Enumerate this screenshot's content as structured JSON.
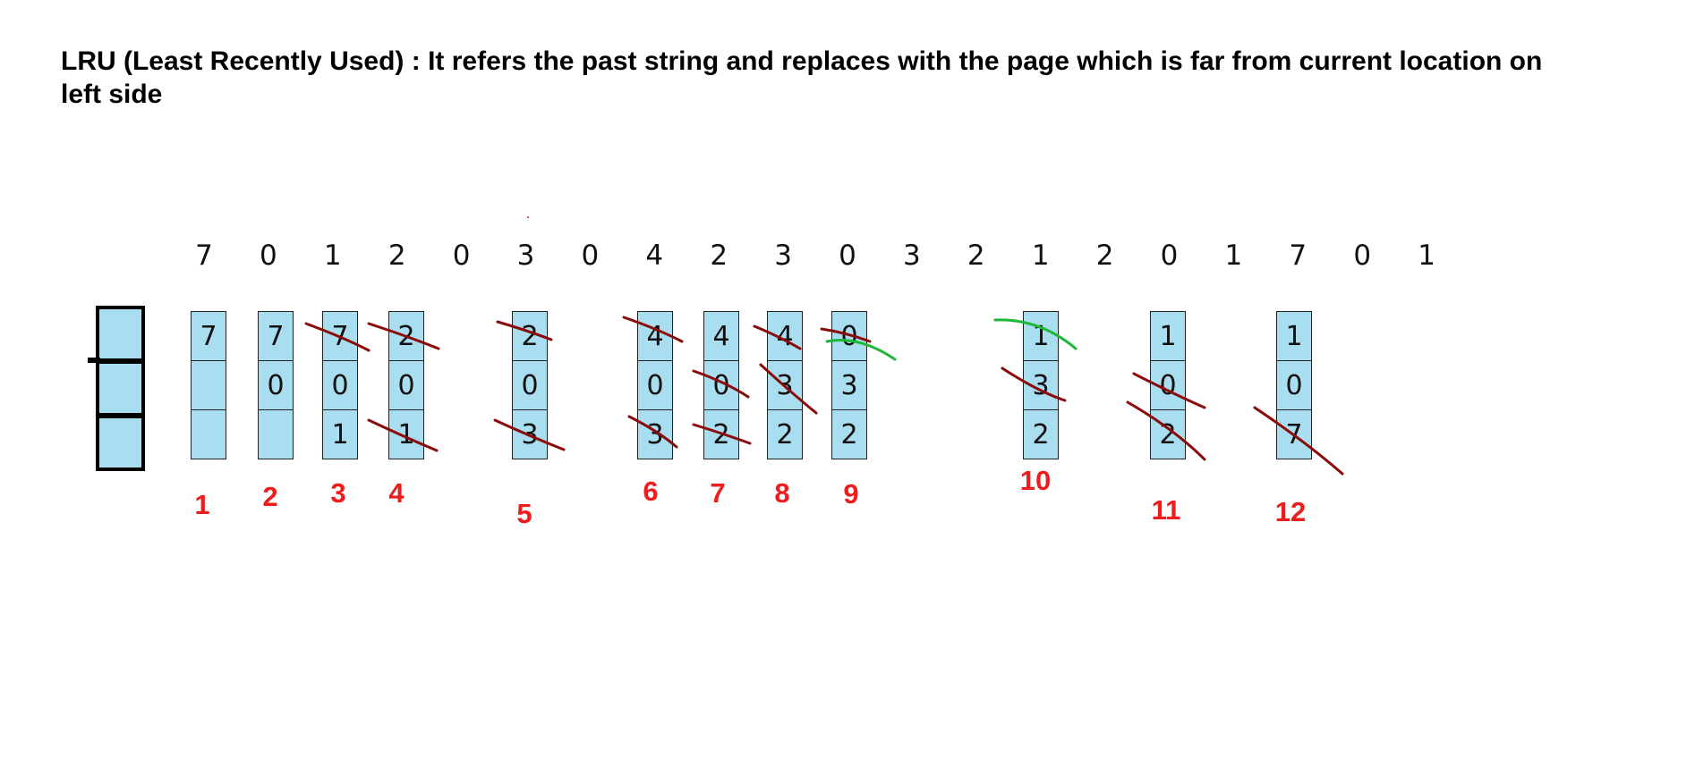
{
  "heading": "LRU (Least Recently Used) : It refers the past string and replaces with the page which is far from current location on left side",
  "reference_string": [
    "7",
    "0",
    "1",
    "2",
    "0",
    "3",
    "0",
    "4",
    "2",
    "3",
    "0",
    "3",
    "2",
    "1",
    "2",
    "0",
    "1",
    "7",
    "0",
    "1"
  ],
  "frames": [
    {
      "step_label": "1",
      "cells": [
        "7",
        "",
        ""
      ]
    },
    {
      "step_label": "2",
      "cells": [
        "7",
        "0",
        ""
      ]
    },
    {
      "step_label": "3",
      "cells": [
        "7",
        "0",
        "1"
      ]
    },
    {
      "step_label": "4",
      "cells": [
        "2",
        "0",
        "1"
      ]
    },
    {
      "step_label": "5",
      "cells": [
        "2",
        "0",
        "3"
      ]
    },
    {
      "step_label": "6",
      "cells": [
        "4",
        "0",
        "3"
      ]
    },
    {
      "step_label": "7",
      "cells": [
        "4",
        "0",
        "2"
      ]
    },
    {
      "step_label": "8",
      "cells": [
        "4",
        "3",
        "2"
      ]
    },
    {
      "step_label": "9",
      "cells": [
        "0",
        "3",
        "2"
      ]
    },
    {
      "step_label": "10",
      "cells": [
        "1",
        "3",
        "2"
      ]
    },
    {
      "step_label": "11",
      "cells": [
        "1",
        "0",
        "2"
      ]
    },
    {
      "step_label": "12",
      "cells": [
        "1",
        "0",
        "7"
      ]
    }
  ],
  "colors": {
    "cell_fill": "#a8def0",
    "step_label": "#ee1c1c",
    "strike_red": "#8b0a0a",
    "strike_green": "#1db83a"
  }
}
